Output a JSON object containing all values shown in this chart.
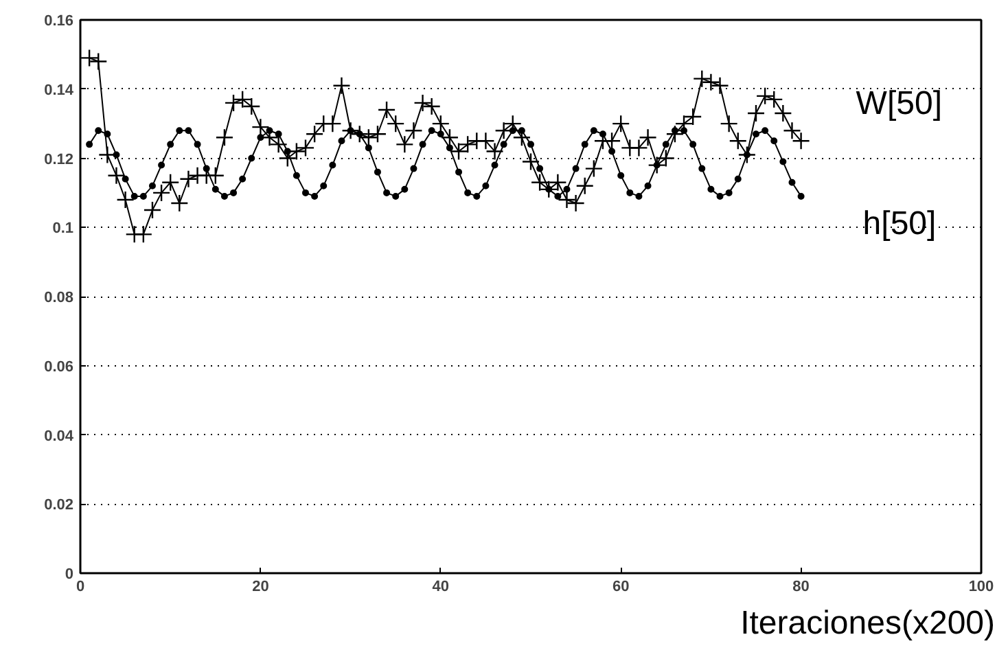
{
  "chart_data": {
    "type": "line",
    "xlabel": "Iteraciones(x200)",
    "x": [
      1,
      2,
      3,
      4,
      5,
      6,
      7,
      8,
      9,
      10,
      11,
      12,
      13,
      14,
      15,
      16,
      17,
      18,
      19,
      20,
      21,
      22,
      23,
      24,
      25,
      26,
      27,
      28,
      29,
      30,
      31,
      32,
      33,
      34,
      35,
      36,
      37,
      38,
      39,
      40,
      41,
      42,
      43,
      44,
      45,
      46,
      47,
      48,
      49,
      50,
      51,
      52,
      53,
      54,
      55,
      56,
      57,
      58,
      59,
      60,
      61,
      62,
      63,
      64,
      65,
      66,
      67,
      68,
      69,
      70,
      71,
      72,
      73,
      74,
      75,
      76,
      77,
      78,
      79,
      80
    ],
    "series": [
      {
        "name": "W[50]",
        "color": "#000000",
        "marker": "cross",
        "values": [
          0.149,
          0.148,
          0.121,
          0.115,
          0.108,
          0.098,
          0.098,
          0.105,
          0.11,
          0.113,
          0.107,
          0.114,
          0.115,
          0.115,
          0.115,
          0.126,
          0.136,
          0.137,
          0.135,
          0.129,
          0.126,
          0.124,
          0.12,
          0.122,
          0.123,
          0.127,
          0.13,
          0.13,
          0.141,
          0.128,
          0.127,
          0.126,
          0.127,
          0.134,
          0.13,
          0.124,
          0.128,
          0.136,
          0.135,
          0.13,
          0.126,
          0.122,
          0.124,
          0.125,
          0.125,
          0.122,
          0.128,
          0.13,
          0.126,
          0.119,
          0.113,
          0.111,
          0.113,
          0.108,
          0.107,
          0.112,
          0.117,
          0.125,
          0.125,
          0.13,
          0.123,
          0.123,
          0.126,
          0.118,
          0.12,
          0.127,
          0.13,
          0.132,
          0.143,
          0.142,
          0.141,
          0.13,
          0.125,
          0.121,
          0.133,
          0.138,
          0.137,
          0.133,
          0.128,
          0.125
        ]
      },
      {
        "name": "h[50]",
        "color": "#000000",
        "marker": "circle",
        "values": [
          0.124,
          0.128,
          0.127,
          0.121,
          0.114,
          0.109,
          0.109,
          0.112,
          0.118,
          0.124,
          0.128,
          0.128,
          0.124,
          0.117,
          0.111,
          0.109,
          0.11,
          0.114,
          0.12,
          0.126,
          0.128,
          0.127,
          0.122,
          0.115,
          0.11,
          0.109,
          0.112,
          0.118,
          0.125,
          0.128,
          0.127,
          0.123,
          0.116,
          0.11,
          0.109,
          0.111,
          0.117,
          0.124,
          0.128,
          0.127,
          0.123,
          0.116,
          0.11,
          0.109,
          0.112,
          0.118,
          0.124,
          0.128,
          0.128,
          0.124,
          0.117,
          0.111,
          0.109,
          0.111,
          0.117,
          0.124,
          0.128,
          0.127,
          0.122,
          0.115,
          0.11,
          0.109,
          0.112,
          0.118,
          0.124,
          0.128,
          0.128,
          0.124,
          0.117,
          0.111,
          0.109,
          0.11,
          0.114,
          0.121,
          0.127,
          0.128,
          0.125,
          0.119,
          0.113,
          0.109
        ]
      }
    ],
    "xlim": [
      0,
      100
    ],
    "ylim": [
      0,
      0.16
    ],
    "xticks": [
      0,
      20,
      40,
      60,
      80,
      100
    ],
    "yticks": [
      0,
      0.02,
      0.04,
      0.06,
      0.08,
      0.1,
      0.12,
      0.14,
      0.16
    ],
    "grid": "y",
    "line_style": "solid"
  }
}
